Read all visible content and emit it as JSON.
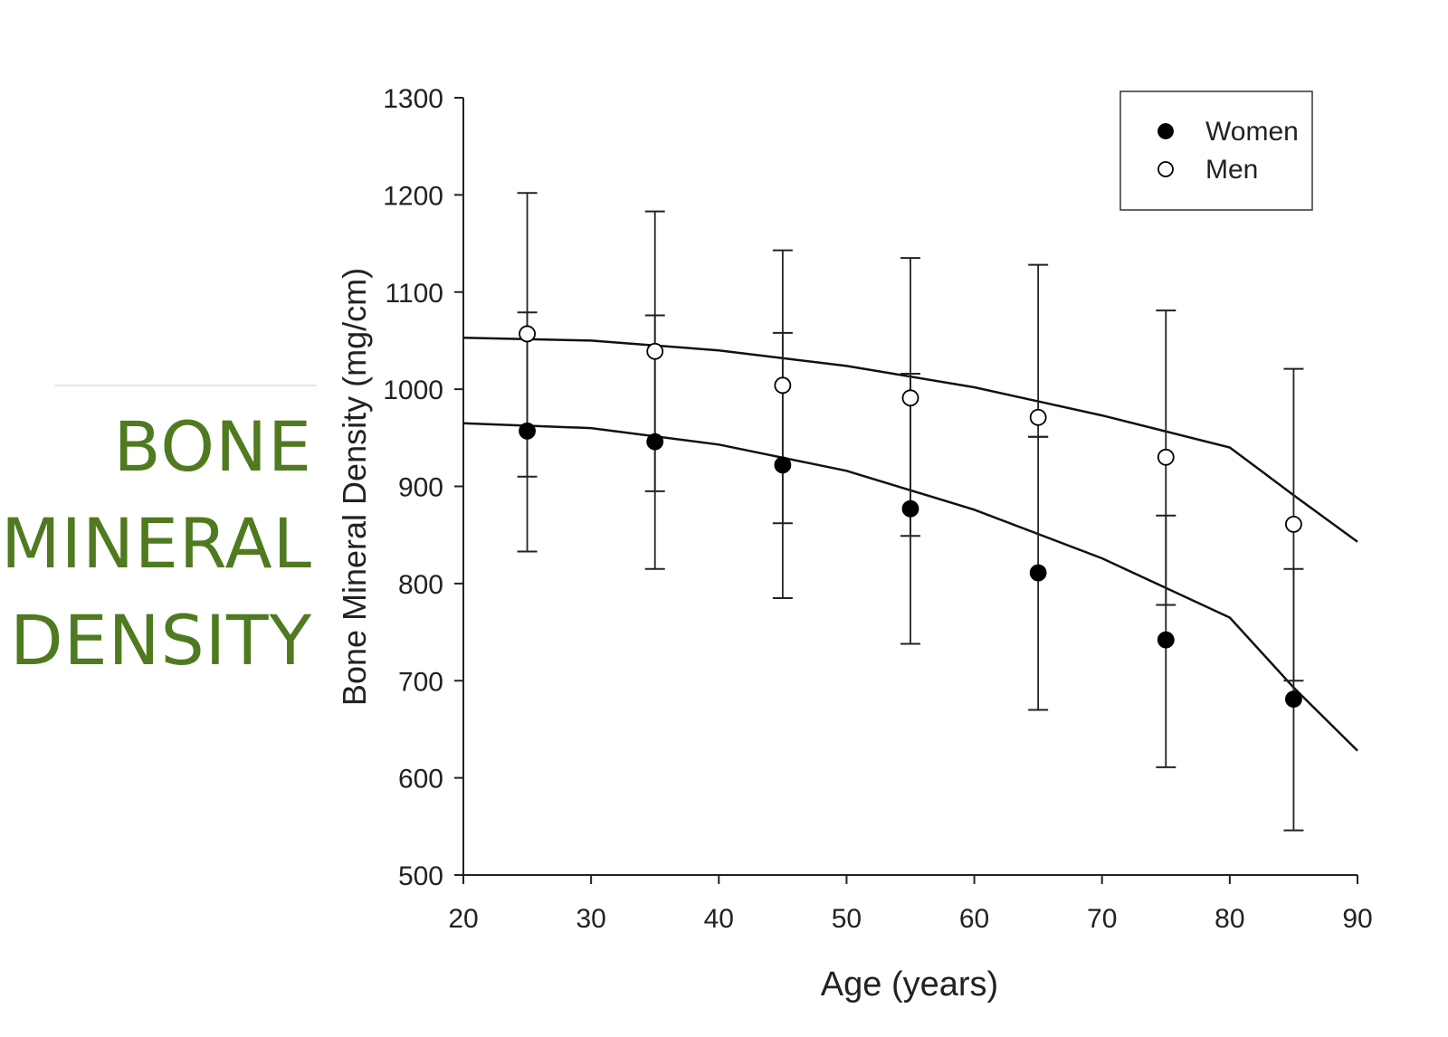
{
  "slide": {
    "title_lines": [
      "BONE",
      "MINERAL",
      "DENSITY"
    ],
    "title_color": "#4f7a1f"
  },
  "chart_data": {
    "type": "scatter",
    "xlabel": "Age (years)",
    "ylabel": "Bone Mineral Density (mg/cm)",
    "xlim": [
      20,
      90
    ],
    "ylim": [
      500,
      1300
    ],
    "xticks": [
      20,
      30,
      40,
      50,
      60,
      70,
      80,
      90
    ],
    "yticks": [
      500,
      600,
      700,
      800,
      900,
      1000,
      1100,
      1200,
      1300
    ],
    "grid": false,
    "legend": "top-right",
    "x": [
      25,
      35,
      45,
      55,
      65,
      75,
      85
    ],
    "series": [
      {
        "name": "Women",
        "marker": "filled-circle",
        "values": [
          957,
          946,
          922,
          877,
          811,
          742,
          681
        ],
        "error_low": [
          833,
          815,
          785,
          738,
          670,
          611,
          546
        ],
        "error_high": [
          1079,
          1076,
          1058,
          1016,
          951,
          870,
          815
        ],
        "fit": [
          965,
          960,
          943,
          916,
          876,
          826,
          765,
          693,
          628
        ]
      },
      {
        "name": "Men",
        "marker": "open-circle",
        "values": [
          1057,
          1039,
          1004,
          991,
          971,
          930,
          861
        ],
        "error_low": [
          910,
          895,
          862,
          849,
          951,
          778,
          700
        ],
        "error_high": [
          1202,
          1183,
          1143,
          1135,
          1128,
          1081,
          1021
        ],
        "fit": [
          1053,
          1050,
          1040,
          1024,
          1002,
          973,
          940,
          891,
          843
        ]
      }
    ],
    "fit_x": [
      20,
      30,
      40,
      50,
      60,
      70,
      80,
      85,
      90
    ]
  }
}
